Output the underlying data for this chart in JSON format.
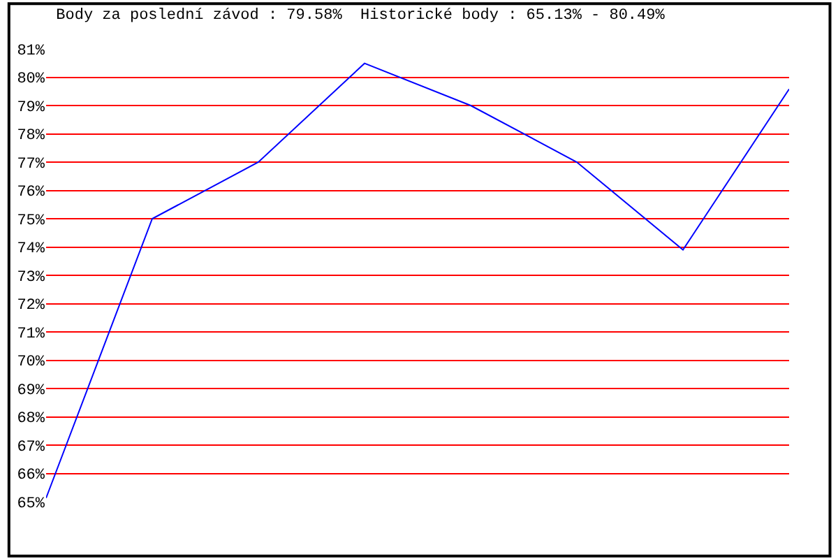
{
  "chart_data": {
    "type": "line",
    "title": "Body za poslední závod : 79.58%  Historické body : 65.13% - 80.49%",
    "categories": [
      null,
      null,
      null,
      null,
      null,
      null,
      null,
      null
    ],
    "series": [
      {
        "color": "#0000ff",
        "values": [
          65.13,
          75.0,
          77.0,
          80.49,
          79.0,
          77.0,
          73.9,
          79.58
        ]
      }
    ],
    "ylim": [
      65,
      81
    ],
    "yticks": [
      {
        "value": 65,
        "label": "65%"
      },
      {
        "value": 66,
        "label": "66%"
      },
      {
        "value": 67,
        "label": "67%"
      },
      {
        "value": 68,
        "label": "68%"
      },
      {
        "value": 69,
        "label": "69%"
      },
      {
        "value": 70,
        "label": "70%"
      },
      {
        "value": 71,
        "label": "71%"
      },
      {
        "value": 72,
        "label": "72%"
      },
      {
        "value": 73,
        "label": "73%"
      },
      {
        "value": 74,
        "label": "74%"
      },
      {
        "value": 75,
        "label": "75%"
      },
      {
        "value": 76,
        "label": "76%"
      },
      {
        "value": 77,
        "label": "77%"
      },
      {
        "value": 78,
        "label": "78%"
      },
      {
        "value": 79,
        "label": "79%"
      },
      {
        "value": 80,
        "label": "80%"
      },
      {
        "value": 81,
        "label": "81%"
      }
    ],
    "grid": "y",
    "legend": false,
    "marker": "none",
    "line_style": "solid",
    "tick_labels": "y"
  }
}
